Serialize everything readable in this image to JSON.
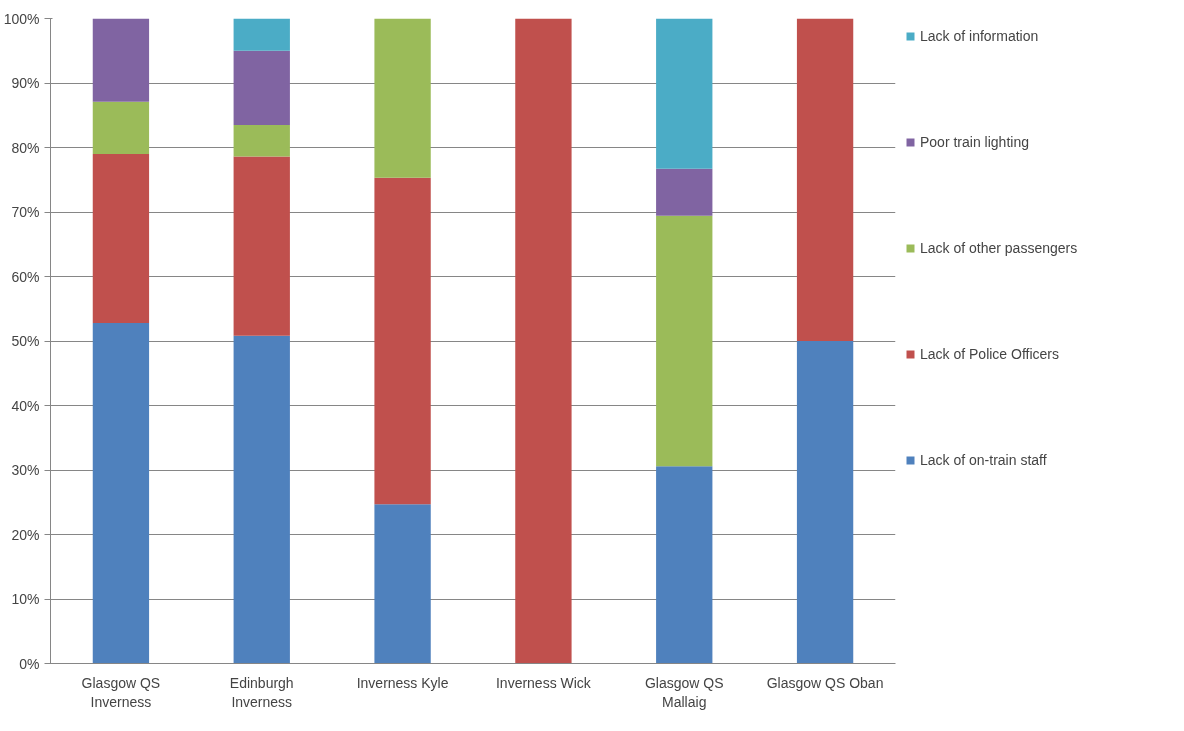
{
  "chart_data": {
    "type": "bar",
    "stacked": true,
    "categories": [
      "Glasgow QS Inverness",
      "Edinburgh Inverness",
      "Inverness Kyle",
      "Inverness Wick",
      "Glasgow QS Mallaig",
      "Glasgow QS Oban"
    ],
    "series": [
      {
        "name": "Lack of on-train staff",
        "color": "#4f81bd",
        "values": [
          52.8,
          50.8,
          24.7,
          0,
          30.6,
          50
        ]
      },
      {
        "name": "Lack of Police Officers",
        "color": "#c0504d",
        "values": [
          26.2,
          27.8,
          50.6,
          100,
          0,
          50
        ]
      },
      {
        "name": "Lack of other passengers",
        "color": "#9bbb59",
        "values": [
          8.1,
          4.9,
          24.7,
          0,
          38.8,
          0
        ]
      },
      {
        "name": "Poor train lighting",
        "color": "#8064a2",
        "values": [
          12.9,
          11.5,
          0,
          0,
          7.3,
          0
        ]
      },
      {
        "name": "Lack of information",
        "color": "#4bacc6",
        "values": [
          0,
          5.0,
          0,
          0,
          23.3,
          0
        ]
      }
    ],
    "ylim": [
      0,
      100
    ],
    "yticks": [
      {
        "value": 0,
        "label": "0%"
      },
      {
        "value": 10,
        "label": "10%"
      },
      {
        "value": 20,
        "label": "20%"
      },
      {
        "value": 30,
        "label": "30%"
      },
      {
        "value": 40,
        "label": "40%"
      },
      {
        "value": 50,
        "label": "50%"
      },
      {
        "value": 60,
        "label": "60%"
      },
      {
        "value": 70,
        "label": "70%"
      },
      {
        "value": 80,
        "label": "80%"
      },
      {
        "value": 90,
        "label": "90%"
      },
      {
        "value": 100,
        "label": "100%"
      }
    ],
    "grid": "y",
    "legend": "right"
  }
}
